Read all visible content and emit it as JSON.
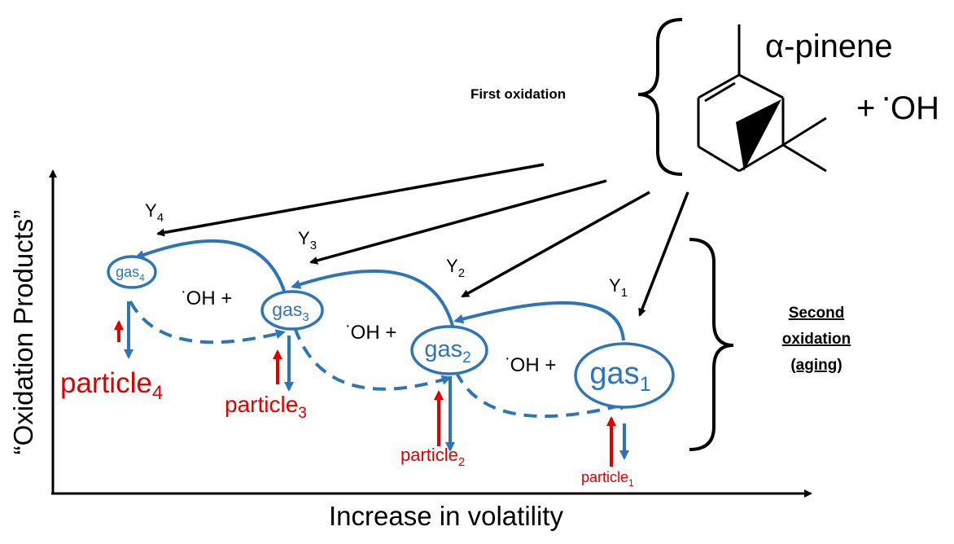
{
  "colors": {
    "gas": "#2e75b6",
    "particle": "#e00000",
    "ink": "#000000"
  },
  "axes": {
    "y_label": "“Oxidation Products”",
    "x_label": "Increase in volatility"
  },
  "reactant": {
    "name": "α-pinene",
    "plus": "+",
    "oh_dot": "·",
    "oh": "OH"
  },
  "first_oxidation": "First oxidation",
  "second_oxidation": {
    "line1": "Second",
    "line2": "oxidation",
    "line3": "(aging)"
  },
  "oh_plus": {
    "dot": "·",
    "text": "OH +"
  },
  "yields": [
    {
      "base": "Y",
      "sub": "4"
    },
    {
      "base": "Y",
      "sub": "3"
    },
    {
      "base": "Y",
      "sub": "2"
    },
    {
      "base": "Y",
      "sub": "1"
    }
  ],
  "gases": [
    {
      "base": "gas",
      "sub": "4"
    },
    {
      "base": "gas",
      "sub": "3"
    },
    {
      "base": "gas",
      "sub": "2"
    },
    {
      "base": "gas",
      "sub": "1"
    }
  ],
  "particles": [
    {
      "base": "particle",
      "sub": "4"
    },
    {
      "base": "particle",
      "sub": "3"
    },
    {
      "base": "particle",
      "sub": "2"
    },
    {
      "base": "particle",
      "sub": "1"
    }
  ]
}
